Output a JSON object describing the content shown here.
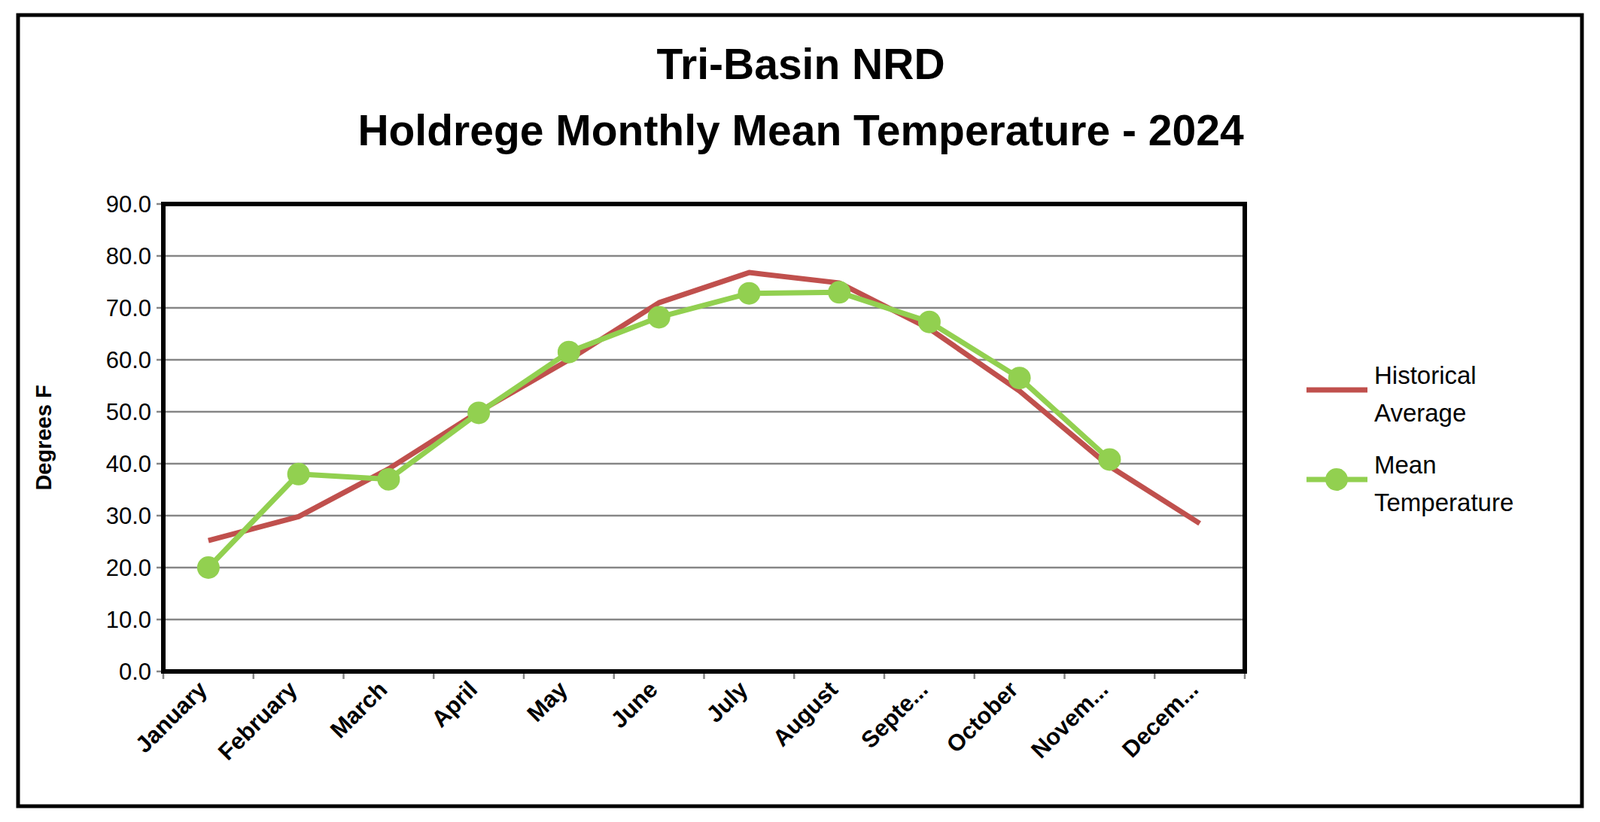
{
  "chart_data": {
    "type": "line",
    "title": "Tri-Basin NRD",
    "subtitle": "Holdrege Monthly Mean Temperature - 2024",
    "y_label": "Degrees F",
    "categories": [
      "January",
      "February",
      "March",
      "April",
      "May",
      "June",
      "July",
      "August",
      "Septe...",
      "October",
      "Novem...",
      "Decem..."
    ],
    "series": [
      {
        "name": "Historical Average",
        "color": "#c0504d",
        "marker": "none",
        "values": [
          25.2,
          29.8,
          39.0,
          50.0,
          60.0,
          71.0,
          76.8,
          74.8,
          66.0,
          54.0,
          39.5,
          28.5
        ]
      },
      {
        "name": "Mean Temperature",
        "color": "#92d050",
        "marker": "circle",
        "values": [
          20.0,
          38.0,
          37.0,
          49.8,
          61.5,
          68.2,
          72.8,
          73.0,
          67.3,
          56.5,
          40.8,
          null
        ]
      }
    ],
    "ylim": [
      0,
      90
    ],
    "yticks": [
      {
        "value": 0,
        "label": "0.0"
      },
      {
        "value": 10,
        "label": "10.0"
      },
      {
        "value": 20,
        "label": "20.0"
      },
      {
        "value": 30,
        "label": "30.0"
      },
      {
        "value": 40,
        "label": "40.0"
      },
      {
        "value": 50,
        "label": "50.0"
      },
      {
        "value": 60,
        "label": "60.0"
      },
      {
        "value": 70,
        "label": "70.0"
      },
      {
        "value": 80,
        "label": "80.0"
      },
      {
        "value": 90,
        "label": "90.0"
      }
    ],
    "grid": true,
    "legend": "right"
  }
}
